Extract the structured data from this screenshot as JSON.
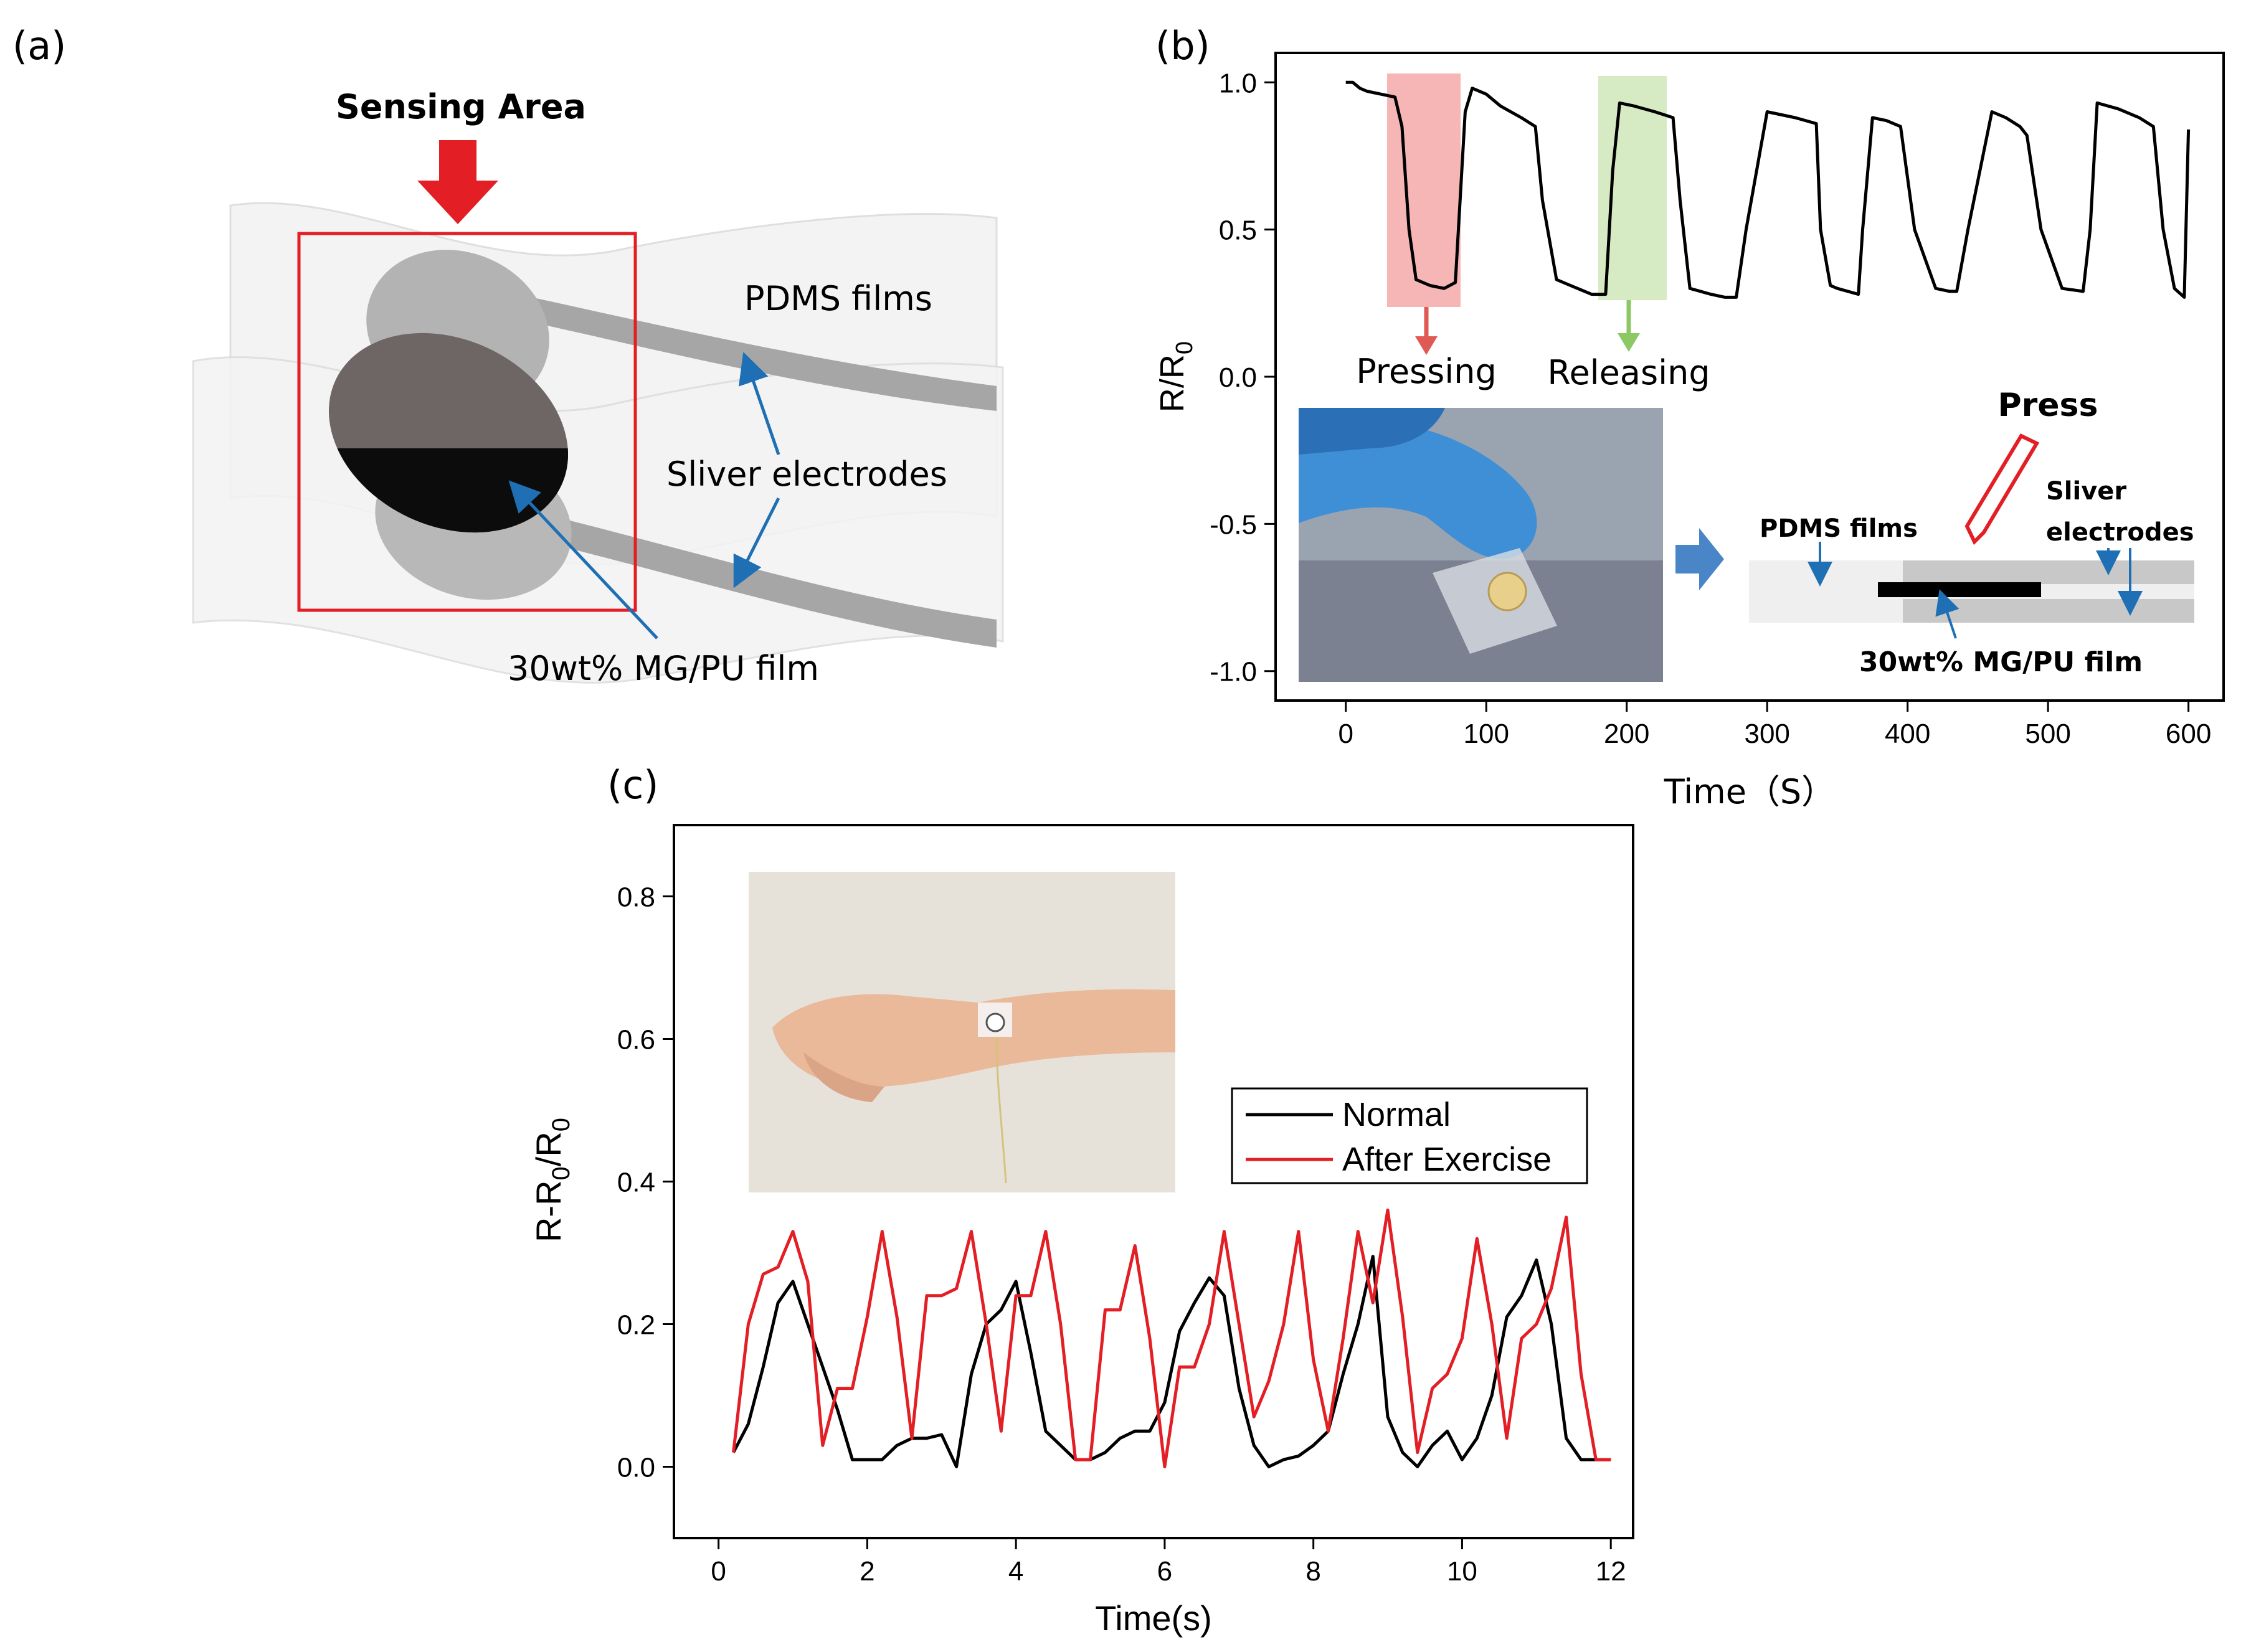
{
  "panel_a": {
    "label": "(a)",
    "sensing_area": "Sensing Area",
    "pdms_films": "PDMS films",
    "sliver_electrodes": "Sliver electrodes",
    "film": "30wt% MG/PU film",
    "colors": {
      "arrow": "#e31e24",
      "box": "#e31e24",
      "pointer": "#1f6fb5"
    }
  },
  "panel_b": {
    "label": "(b)",
    "pressing": "Pressing",
    "releasing": "Releasing",
    "inset": {
      "press": "Press",
      "pdms_films": "PDMS films",
      "sliver": "Sliver",
      "electrodes": "electrodes",
      "film": "30wt% MG/PU film"
    }
  },
  "panel_c": {
    "label": "(c)"
  },
  "chart_data": [
    {
      "type": "line",
      "panel": "b",
      "xlabel": "Time（S）",
      "ylabel_main": "R/R",
      "ylabel_sub": "0",
      "xlim": [
        -50,
        625
      ],
      "ylim": [
        -1.1,
        1.1
      ],
      "xticks": [
        0,
        100,
        200,
        300,
        400,
        500,
        600
      ],
      "yticks": [
        1.0,
        0.5,
        0.0,
        -0.5,
        -1.0
      ],
      "ytick_labels": [
        "1.0",
        "0.5",
        "0.0",
        "-0.5",
        "-1.0"
      ],
      "grid": false,
      "series": [
        {
          "color": "#000000",
          "x": [
            0,
            5,
            10,
            15,
            25,
            35,
            40,
            45,
            50,
            60,
            70,
            78,
            85,
            90,
            100,
            110,
            125,
            135,
            140,
            150,
            160,
            175,
            185,
            190,
            195,
            205,
            220,
            233,
            238,
            245,
            260,
            270,
            278,
            285,
            300,
            320,
            335,
            338,
            345,
            350,
            365,
            368,
            375,
            385,
            395,
            405,
            420,
            430,
            435,
            443,
            460,
            470,
            480,
            485,
            495,
            510,
            525,
            530,
            535,
            550,
            565,
            575,
            582,
            590,
            597,
            600
          ],
          "y": [
            1.0,
            1.0,
            0.98,
            0.97,
            0.96,
            0.95,
            0.85,
            0.5,
            0.33,
            0.31,
            0.3,
            0.32,
            0.9,
            0.98,
            0.96,
            0.92,
            0.88,
            0.85,
            0.6,
            0.33,
            0.31,
            0.28,
            0.28,
            0.7,
            0.93,
            0.92,
            0.9,
            0.88,
            0.6,
            0.3,
            0.28,
            0.27,
            0.27,
            0.5,
            0.9,
            0.88,
            0.86,
            0.5,
            0.31,
            0.3,
            0.28,
            0.5,
            0.88,
            0.87,
            0.85,
            0.5,
            0.3,
            0.29,
            0.29,
            0.5,
            0.9,
            0.88,
            0.85,
            0.82,
            0.5,
            0.3,
            0.29,
            0.5,
            0.93,
            0.91,
            0.88,
            0.85,
            0.5,
            0.3,
            0.27,
            0.84
          ]
        }
      ],
      "annotations": [
        "Pressing",
        "Releasing"
      ]
    },
    {
      "type": "line",
      "panel": "c",
      "xlabel": "Time(s)",
      "ylabel_main": "R-R",
      "ylabel_mid": "0",
      "ylabel_slash": "/R",
      "ylabel_sub": "0",
      "xlim": [
        -0.6,
        12.3
      ],
      "ylim": [
        -0.1,
        0.9
      ],
      "xticks": [
        0,
        2,
        4,
        6,
        8,
        10,
        12
      ],
      "yticks": [
        0.0,
        0.2,
        0.4,
        0.6,
        0.8
      ],
      "ytick_labels": [
        "0.0",
        "0.2",
        "0.4",
        "0.6",
        "0.8"
      ],
      "grid": false,
      "legend_position": "upper-right-inside",
      "series": [
        {
          "name": "Normal",
          "color": "#000000",
          "x": [
            0.2,
            0.4,
            0.6,
            0.8,
            1.0,
            1.2,
            1.4,
            1.6,
            1.8,
            2.0,
            2.2,
            2.4,
            2.6,
            2.8,
            3.0,
            3.2,
            3.4,
            3.6,
            3.8,
            4.0,
            4.2,
            4.4,
            4.6,
            4.8,
            5.0,
            5.2,
            5.4,
            5.6,
            5.8,
            6.0,
            6.2,
            6.4,
            6.6,
            6.8,
            7.0,
            7.2,
            7.4,
            7.6,
            7.8,
            8.0,
            8.2,
            8.4,
            8.6,
            8.8,
            9.0,
            9.2,
            9.4,
            9.6,
            9.8,
            10.0,
            10.2,
            10.4,
            10.6,
            10.8,
            11.0,
            11.2,
            11.4,
            11.6,
            11.8,
            12.0
          ],
          "y": [
            0.02,
            0.06,
            0.14,
            0.23,
            0.26,
            0.2,
            0.14,
            0.08,
            0.01,
            0.01,
            0.01,
            0.03,
            0.04,
            0.04,
            0.045,
            0.0,
            0.13,
            0.2,
            0.22,
            0.26,
            0.16,
            0.05,
            0.03,
            0.01,
            0.01,
            0.02,
            0.04,
            0.05,
            0.05,
            0.09,
            0.19,
            0.23,
            0.265,
            0.24,
            0.11,
            0.03,
            0.0,
            0.01,
            0.015,
            0.03,
            0.05,
            0.13,
            0.2,
            0.295,
            0.07,
            0.02,
            0.0,
            0.03,
            0.05,
            0.01,
            0.04,
            0.1,
            0.21,
            0.24,
            0.29,
            0.2,
            0.04,
            0.01,
            0.01,
            0.01
          ]
        },
        {
          "name": "After Exercise",
          "color": "#e31e24",
          "x": [
            0.2,
            0.4,
            0.6,
            0.8,
            1.0,
            1.2,
            1.4,
            1.6,
            1.8,
            2.0,
            2.2,
            2.4,
            2.6,
            2.8,
            3.0,
            3.2,
            3.4,
            3.6,
            3.8,
            4.0,
            4.2,
            4.4,
            4.6,
            4.8,
            5.0,
            5.2,
            5.4,
            5.6,
            5.8,
            6.0,
            6.2,
            6.4,
            6.6,
            6.8,
            7.0,
            7.2,
            7.4,
            7.6,
            7.8,
            8.0,
            8.2,
            8.4,
            8.6,
            8.8,
            9.0,
            9.2,
            9.4,
            9.6,
            9.8,
            10.0,
            10.2,
            10.4,
            10.6,
            10.8,
            11.0,
            11.2,
            11.4,
            11.6,
            11.8,
            12.0
          ],
          "y": [
            0.02,
            0.2,
            0.27,
            0.28,
            0.33,
            0.26,
            0.03,
            0.11,
            0.11,
            0.21,
            0.33,
            0.21,
            0.04,
            0.24,
            0.24,
            0.25,
            0.33,
            0.2,
            0.05,
            0.24,
            0.24,
            0.33,
            0.2,
            0.01,
            0.01,
            0.22,
            0.22,
            0.31,
            0.18,
            0.0,
            0.14,
            0.14,
            0.2,
            0.33,
            0.2,
            0.07,
            0.12,
            0.2,
            0.33,
            0.15,
            0.05,
            0.18,
            0.33,
            0.23,
            0.36,
            0.21,
            0.02,
            0.11,
            0.13,
            0.18,
            0.32,
            0.2,
            0.04,
            0.18,
            0.2,
            0.25,
            0.35,
            0.13,
            0.01,
            0.01
          ]
        }
      ]
    }
  ]
}
